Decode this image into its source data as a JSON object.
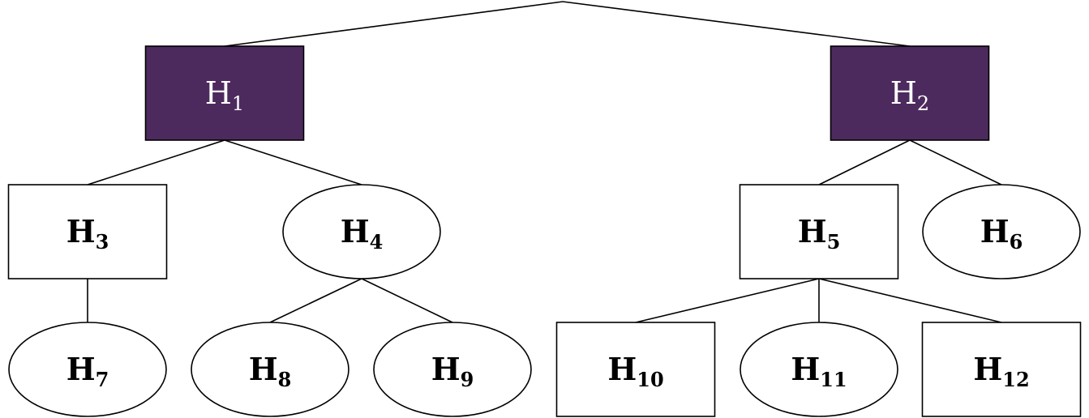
{
  "colors": {
    "highlight_fill": "#4d2a5e",
    "highlight_text": "#ffffff",
    "default_fill": "#ffffff",
    "default_text": "#000000",
    "line": "#000000"
  },
  "nodes": [
    {
      "id": "H1",
      "letter": "H",
      "sub": "1",
      "shape": "rect",
      "highlighted": true
    },
    {
      "id": "H2",
      "letter": "H",
      "sub": "2",
      "shape": "rect",
      "highlighted": true
    },
    {
      "id": "H3",
      "letter": "H",
      "sub": "3",
      "shape": "rect",
      "highlighted": false
    },
    {
      "id": "H4",
      "letter": "H",
      "sub": "4",
      "shape": "ellipse",
      "highlighted": false
    },
    {
      "id": "H5",
      "letter": "H",
      "sub": "5",
      "shape": "rect",
      "highlighted": false
    },
    {
      "id": "H6",
      "letter": "H",
      "sub": "6",
      "shape": "ellipse",
      "highlighted": false
    },
    {
      "id": "H7",
      "letter": "H",
      "sub": "7",
      "shape": "ellipse",
      "highlighted": false
    },
    {
      "id": "H8",
      "letter": "H",
      "sub": "8",
      "shape": "ellipse",
      "highlighted": false
    },
    {
      "id": "H9",
      "letter": "H",
      "sub": "9",
      "shape": "ellipse",
      "highlighted": false
    },
    {
      "id": "H10",
      "letter": "H",
      "sub": "10",
      "shape": "rect",
      "highlighted": false
    },
    {
      "id": "H11",
      "letter": "H",
      "sub": "11",
      "shape": "ellipse",
      "highlighted": false
    },
    {
      "id": "H12",
      "letter": "H",
      "sub": "12",
      "shape": "rect",
      "highlighted": false
    }
  ],
  "edges": [
    {
      "from": "root",
      "to": "H1"
    },
    {
      "from": "root",
      "to": "H2"
    },
    {
      "from": "H1",
      "to": "H3"
    },
    {
      "from": "H1",
      "to": "H4"
    },
    {
      "from": "H2",
      "to": "H5"
    },
    {
      "from": "H2",
      "to": "H6"
    },
    {
      "from": "H3",
      "to": "H7"
    },
    {
      "from": "H4",
      "to": "H8"
    },
    {
      "from": "H4",
      "to": "H9"
    },
    {
      "from": "H5",
      "to": "H10"
    },
    {
      "from": "H5",
      "to": "H11"
    },
    {
      "from": "H5",
      "to": "H12"
    }
  ]
}
